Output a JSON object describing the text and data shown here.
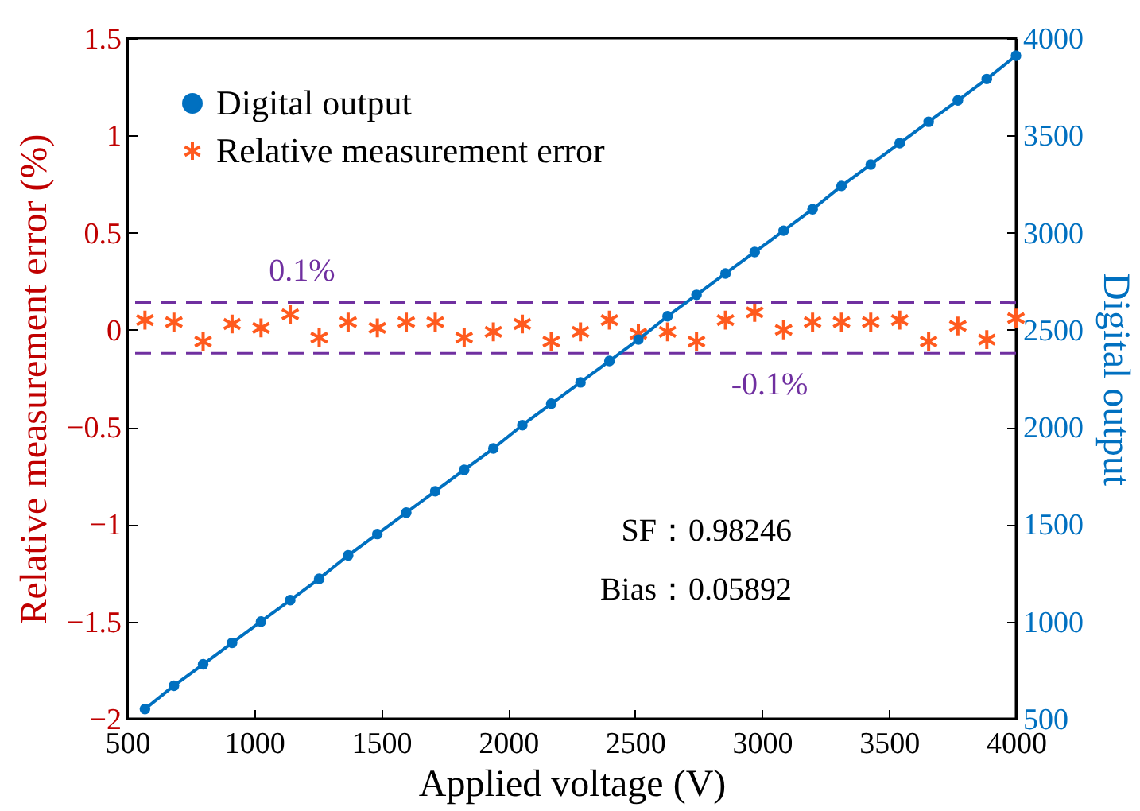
{
  "chart_data": {
    "type": "line",
    "xlabel": "Applied voltage (V)",
    "ylabel": "Relative measurement error (%)",
    "y2label": "Digital output",
    "x": [
      570,
      684,
      799,
      913,
      1027,
      1142,
      1256,
      1370,
      1485,
      1599,
      1713,
      1827,
      1942,
      2056,
      2170,
      2285,
      2399,
      2513,
      2628,
      2742,
      2856,
      2971,
      3085,
      3199,
      3313,
      3428,
      3542,
      3656,
      3771,
      3885,
      4000
    ],
    "series": [
      {
        "name": "Digital output",
        "type": "line",
        "axis": "y2",
        "color": "#0070c0",
        "marker": "circle",
        "values": [
          550,
          670,
          780,
          890,
          1000,
          1110,
          1220,
          1340,
          1450,
          1560,
          1670,
          1780,
          1890,
          2010,
          2120,
          2230,
          2340,
          2450,
          2570,
          2680,
          2790,
          2900,
          3010,
          3120,
          3240,
          3350,
          3460,
          3570,
          3680,
          3790,
          3910
        ]
      },
      {
        "name": "Relative measurement error",
        "type": "scatter",
        "color": "#ff5a1e",
        "marker": "cross",
        "values": [
          0.05,
          0.04,
          -0.06,
          0.03,
          0.01,
          0.08,
          -0.04,
          0.04,
          0.01,
          0.04,
          0.04,
          -0.04,
          -0.01,
          0.03,
          -0.06,
          -0.01,
          0.05,
          -0.02,
          -0.01,
          -0.06,
          0.05,
          0.09,
          0.0,
          0.04,
          0.04,
          0.04,
          0.05,
          -0.06,
          0.02,
          -0.05,
          0.06
        ]
      }
    ],
    "xlim": [
      500,
      4000
    ],
    "xticks": [
      500,
      1000,
      1500,
      2000,
      2500,
      3000,
      3500,
      4000
    ],
    "ylim": [
      -2,
      1.5
    ],
    "yticks": [
      -2,
      -1.5,
      -1,
      -0.5,
      0,
      0.5,
      1,
      1.5
    ],
    "y2lim": [
      500,
      4000
    ],
    "y2ticks": [
      500,
      1000,
      1500,
      2000,
      2500,
      3000,
      3500,
      4000
    ],
    "ref_lines": [
      {
        "axis": "y",
        "value": 0.14,
        "label": "0.1%",
        "color": "#7030a0",
        "line_style": "dashed"
      },
      {
        "axis": "y",
        "value": -0.12,
        "label": "-0.1%",
        "color": "#7030a0",
        "line_style": "dashed"
      }
    ],
    "annotations": [
      "SF：0.98246",
      "Bias：0.05892"
    ],
    "legend": "top left",
    "grid": false
  }
}
